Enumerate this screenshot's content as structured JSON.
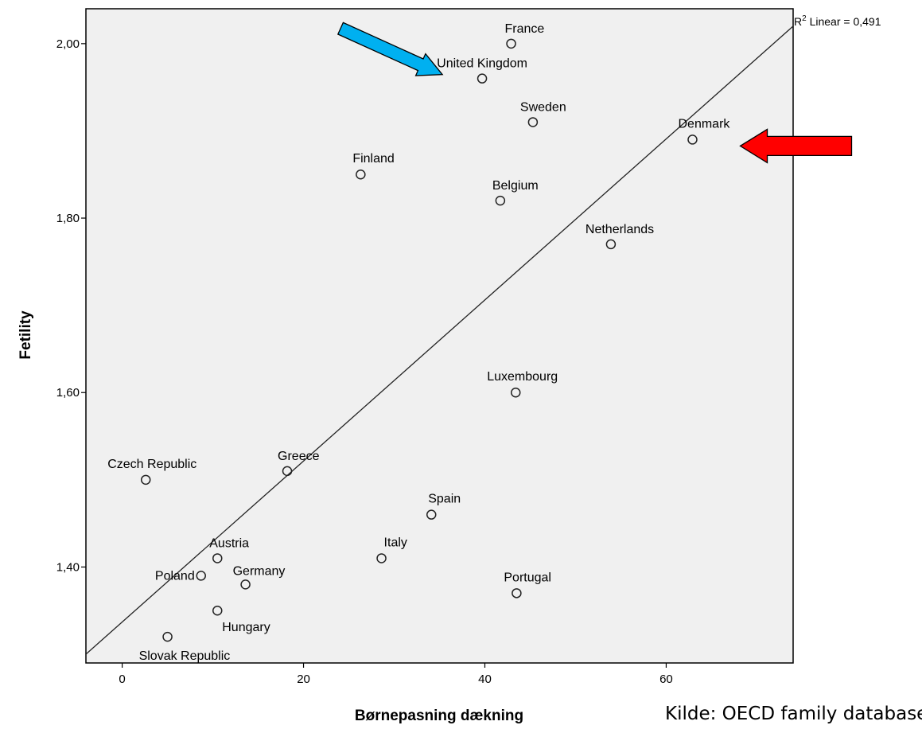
{
  "chart_data": {
    "type": "scatter",
    "title": "",
    "xlabel": "Børnepasning dækning",
    "ylabel": "Fetility",
    "xlim": [
      -4,
      74
    ],
    "ylim": [
      1.29,
      2.04
    ],
    "x_ticks": [
      0,
      20,
      40,
      60
    ],
    "x_tick_labels": [
      "0",
      "20",
      "40",
      "60"
    ],
    "y_ticks": [
      1.4,
      1.6,
      1.8,
      2.0
    ],
    "y_tick_labels": [
      "1,40",
      "1,60",
      "1,80",
      "2,00"
    ],
    "grid": false,
    "fit_line": {
      "label": "R² Linear = 0,491",
      "start": [
        -4,
        1.3
      ],
      "end": [
        74,
        2.02
      ]
    },
    "points": [
      {
        "label": "France",
        "x": 42.9,
        "y": 2.0
      },
      {
        "label": "United Kingdom",
        "x": 39.7,
        "y": 1.96
      },
      {
        "label": "Sweden",
        "x": 45.3,
        "y": 1.91
      },
      {
        "label": "Denmark",
        "x": 62.9,
        "y": 1.89
      },
      {
        "label": "Finland",
        "x": 26.3,
        "y": 1.85
      },
      {
        "label": "Belgium",
        "x": 41.7,
        "y": 1.82
      },
      {
        "label": "Netherlands",
        "x": 53.9,
        "y": 1.77
      },
      {
        "label": "Luxembourg",
        "x": 43.4,
        "y": 1.6
      },
      {
        "label": "Greece",
        "x": 18.2,
        "y": 1.51
      },
      {
        "label": "Czech Republic",
        "x": 2.6,
        "y": 1.5
      },
      {
        "label": "Spain",
        "x": 34.1,
        "y": 1.46
      },
      {
        "label": "Austria",
        "x": 10.5,
        "y": 1.41
      },
      {
        "label": "Italy",
        "x": 28.6,
        "y": 1.41
      },
      {
        "label": "Poland",
        "x": 8.7,
        "y": 1.39
      },
      {
        "label": "Germany",
        "x": 13.6,
        "y": 1.38
      },
      {
        "label": "Portugal",
        "x": 43.5,
        "y": 1.37
      },
      {
        "label": "Hungary",
        "x": 10.5,
        "y": 1.35
      },
      {
        "label": "Slovak Republic",
        "x": 5.0,
        "y": 1.32
      }
    ],
    "annotations": [
      {
        "type": "arrow",
        "color": "#00B0F0",
        "points_to": "United Kingdom"
      },
      {
        "type": "arrow",
        "color": "#FF0000",
        "points_to": "Denmark"
      }
    ]
  },
  "source_text": "Kilde: OECD family database",
  "colors": {
    "plot_background": "#F0F0F0",
    "arrow_blue": "#00B0F0",
    "arrow_red": "#FF0000"
  }
}
